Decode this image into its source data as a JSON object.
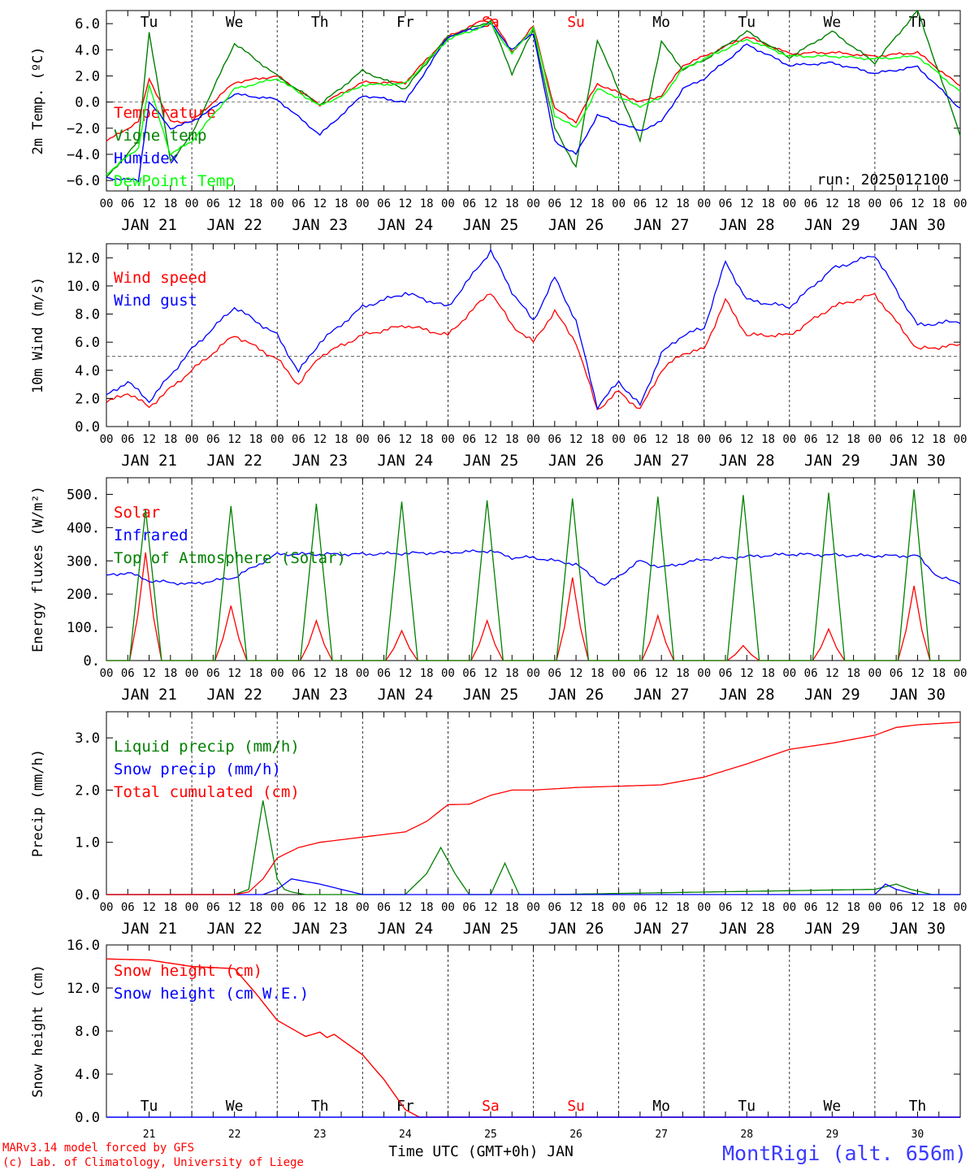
{
  "footer": {
    "model_line": "MARv3.14 model forced by GFS",
    "credit_line": "(c) Lab. of Climatology, University of Liege",
    "time_axis_label": "Time UTC (GMT+0h) JAN",
    "station": "MontRigi (alt. 656m)"
  },
  "time_axis": {
    "hour_ticks": [
      "00",
      "06",
      "12",
      "18"
    ],
    "last_tick": "00",
    "dates": [
      "JAN 21",
      "JAN 22",
      "JAN 23",
      "JAN 24",
      "JAN 25",
      "JAN 26",
      "JAN 27",
      "JAN 28",
      "JAN 29",
      "JAN 30"
    ],
    "day_numbers": [
      "21",
      "22",
      "23",
      "24",
      "25",
      "26",
      "27",
      "28",
      "29",
      "30"
    ],
    "weekdays": [
      "Tu",
      "We",
      "Th",
      "Fr",
      "Sa",
      "Su",
      "Mo",
      "Tu",
      "We",
      "Th"
    ],
    "weekend_color": "#ff0000",
    "weekday_color": "#000000"
  },
  "chart_data": [
    {
      "type": "line",
      "ylabel": "2m Temp. (ºC)",
      "yticks": [
        "6.0",
        "4.0",
        "2.0",
        "0.0",
        "−2.0",
        "−4.0",
        "−6.0"
      ],
      "ylim": [
        -6.8,
        7.0
      ],
      "ref_line": 0,
      "run_label": "run: 2025012100",
      "x": [
        0,
        9,
        12,
        18,
        24,
        36,
        48,
        60,
        72,
        84,
        96,
        108,
        114,
        120,
        126,
        132,
        138,
        150,
        156,
        162,
        168,
        180,
        192,
        204,
        216,
        228,
        240
      ],
      "series": [
        {
          "name": "Temperature",
          "color": "#ff0000",
          "values": [
            -3.0,
            -1.5,
            1.8,
            -1.5,
            -1.5,
            1.5,
            2.0,
            -0.2,
            1.5,
            1.5,
            5.0,
            6.5,
            3.8,
            5.8,
            -0.5,
            -1.5,
            1.4,
            0.0,
            0.5,
            2.8,
            3.5,
            5.0,
            3.7,
            3.8,
            3.5,
            3.8,
            1.2
          ]
        },
        {
          "name": "Vigne temp",
          "color": "#008000",
          "values": [
            -5.8,
            -3.0,
            5.4,
            -4.5,
            -2.5,
            4.5,
            2.0,
            -0.2,
            2.4,
            1.0,
            5.0,
            6.2,
            2.2,
            5.5,
            -2.0,
            -5.0,
            4.8,
            -3.0,
            4.6,
            2.5,
            3.2,
            5.4,
            3.4,
            5.4,
            3.0,
            7.0,
            -2.5
          ]
        },
        {
          "name": "Humidex",
          "color": "#0000ff",
          "values": [
            -5.8,
            -6.0,
            0.0,
            -2.0,
            -1.5,
            0.6,
            0.2,
            -2.5,
            0.5,
            0.0,
            5.0,
            6.0,
            4.0,
            5.3,
            -3.0,
            -4.0,
            -1.0,
            -2.2,
            -1.5,
            1.0,
            1.8,
            4.4,
            2.8,
            3.0,
            2.2,
            2.7,
            -0.5
          ]
        },
        {
          "name": "DewPoint Temp",
          "color": "#00ff00",
          "values": [
            -5.5,
            -3.5,
            1.3,
            -4.0,
            -3.0,
            1.0,
            1.8,
            -0.3,
            1.3,
            1.4,
            4.8,
            6.0,
            3.7,
            5.7,
            -1.0,
            -2.0,
            1.0,
            -0.3,
            0.3,
            2.5,
            3.3,
            4.8,
            3.5,
            3.5,
            3.3,
            3.5,
            0.8
          ]
        }
      ]
    },
    {
      "type": "line",
      "ylabel": "10m Wind (m/s)",
      "yticks": [
        "12.0",
        "10.0",
        "8.0",
        "6.0",
        "4.0",
        "2.0",
        "0.0"
      ],
      "ylim": [
        0,
        13.0
      ],
      "ref_line": 5,
      "x": [
        0,
        6,
        12,
        24,
        36,
        48,
        54,
        60,
        72,
        84,
        96,
        108,
        114,
        120,
        126,
        132,
        138,
        144,
        150,
        156,
        162,
        168,
        174,
        180,
        192,
        204,
        216,
        228,
        240
      ],
      "series": [
        {
          "name": "Wind speed",
          "color": "#ff0000",
          "values": [
            1.7,
            2.4,
            1.4,
            4.0,
            6.5,
            4.8,
            3.0,
            5.0,
            6.5,
            7.2,
            6.5,
            9.6,
            7.2,
            6.0,
            8.2,
            6.0,
            1.2,
            2.5,
            1.2,
            4.0,
            5.2,
            5.5,
            9.0,
            6.5,
            6.5,
            8.5,
            9.4,
            5.5,
            5.8
          ]
        },
        {
          "name": "Wind gust",
          "color": "#0000ff",
          "values": [
            2.2,
            3.2,
            1.8,
            5.5,
            8.5,
            6.5,
            3.9,
            6.0,
            8.5,
            9.5,
            8.5,
            12.5,
            9.6,
            7.5,
            10.6,
            7.5,
            1.4,
            3.2,
            1.5,
            5.2,
            6.5,
            7.0,
            11.7,
            9.0,
            8.5,
            11.2,
            12.2,
            7.2,
            7.5
          ]
        }
      ]
    },
    {
      "type": "line",
      "ylabel": "Energy fluxes (W/m²)",
      "yticks": [
        "500.",
        "400.",
        "300.",
        "200.",
        "100.",
        "0."
      ],
      "ylim": [
        0,
        550
      ],
      "peak_hour": 11,
      "day_width_hours": 9,
      "series": [
        {
          "name": "Solar",
          "color": "#ff0000",
          "values": [
            325,
            165,
            120,
            90,
            120,
            250,
            135,
            45,
            95,
            225
          ]
        },
        {
          "name": "Infrared",
          "color": "#0000ff",
          "x": [
            0,
            6,
            12,
            24,
            36,
            48,
            72,
            96,
            108,
            114,
            120,
            132,
            140,
            150,
            156,
            168,
            192,
            216,
            228,
            234,
            240
          ],
          "values": [
            255,
            265,
            240,
            230,
            250,
            320,
            320,
            325,
            330,
            310,
            310,
            290,
            225,
            300,
            280,
            305,
            320,
            315,
            315,
            250,
            235
          ]
        },
        {
          "name": "Top of Atmosphere (Solar)",
          "color": "#008000",
          "values": [
            455,
            465,
            472,
            478,
            482,
            488,
            493,
            498,
            505,
            515
          ]
        }
      ]
    },
    {
      "type": "line",
      "ylabel": "Precip (mm/h)",
      "yticks": [
        "3.0",
        "2.0",
        "1.0",
        "0.0"
      ],
      "ylim": [
        0,
        3.5
      ],
      "series": [
        {
          "name": "Liquid precip (mm/h)",
          "color": "#008000",
          "x": [
            0,
            36,
            40,
            44,
            48,
            50,
            52,
            56,
            66,
            84,
            90,
            94,
            98,
            102,
            108,
            112,
            116,
            124,
            216,
            222,
            226,
            232,
            240
          ],
          "values": [
            0,
            0,
            0.1,
            1.8,
            0.3,
            0.1,
            0.05,
            0,
            0,
            0,
            0.4,
            0.9,
            0.4,
            0,
            0,
            0.6,
            0,
            0,
            0.1,
            0.2,
            0.1,
            0,
            0
          ]
        },
        {
          "name": "Snow precip (mm/h)",
          "color": "#0000ff",
          "x": [
            0,
            44,
            48,
            52,
            56,
            60,
            66,
            72,
            216,
            219,
            222,
            228,
            240
          ],
          "values": [
            0,
            0,
            0.1,
            0.3,
            0.25,
            0.2,
            0.1,
            0,
            0,
            0.2,
            0.1,
            0,
            0
          ]
        },
        {
          "name": "Total cumulated (cm)",
          "color": "#ff0000",
          "x": [
            0,
            36,
            40,
            44,
            48,
            54,
            60,
            72,
            84,
            90,
            96,
            102,
            108,
            114,
            120,
            132,
            156,
            168,
            180,
            192,
            204,
            216,
            222,
            228,
            240
          ],
          "values": [
            0,
            0,
            0.05,
            0.3,
            0.7,
            0.9,
            1.0,
            1.1,
            1.2,
            1.4,
            1.72,
            1.73,
            1.9,
            2.0,
            2.0,
            2.05,
            2.1,
            2.25,
            2.5,
            2.78,
            2.9,
            3.05,
            3.2,
            3.25,
            3.3
          ]
        }
      ]
    },
    {
      "type": "line",
      "ylabel": "Snow height (cm)",
      "yticks": [
        "16.0",
        "12.0",
        "8.0",
        "4.0",
        "0.0"
      ],
      "ylim": [
        0,
        16.0
      ],
      "series": [
        {
          "name": "Snow height (cm)",
          "color": "#ff0000",
          "x": [
            0,
            12,
            24,
            36,
            42,
            48,
            56,
            60,
            62,
            64,
            72,
            78,
            84,
            88,
            240
          ],
          "values": [
            14.7,
            14.6,
            14.0,
            13.8,
            11.5,
            9.0,
            7.5,
            7.9,
            7.4,
            7.7,
            5.8,
            3.5,
            0.7,
            0,
            0
          ]
        },
        {
          "name": "Snow height (cm W.E.)",
          "color": "#0000ff",
          "x": [
            0,
            240
          ],
          "values": [
            0,
            0
          ]
        }
      ]
    }
  ]
}
